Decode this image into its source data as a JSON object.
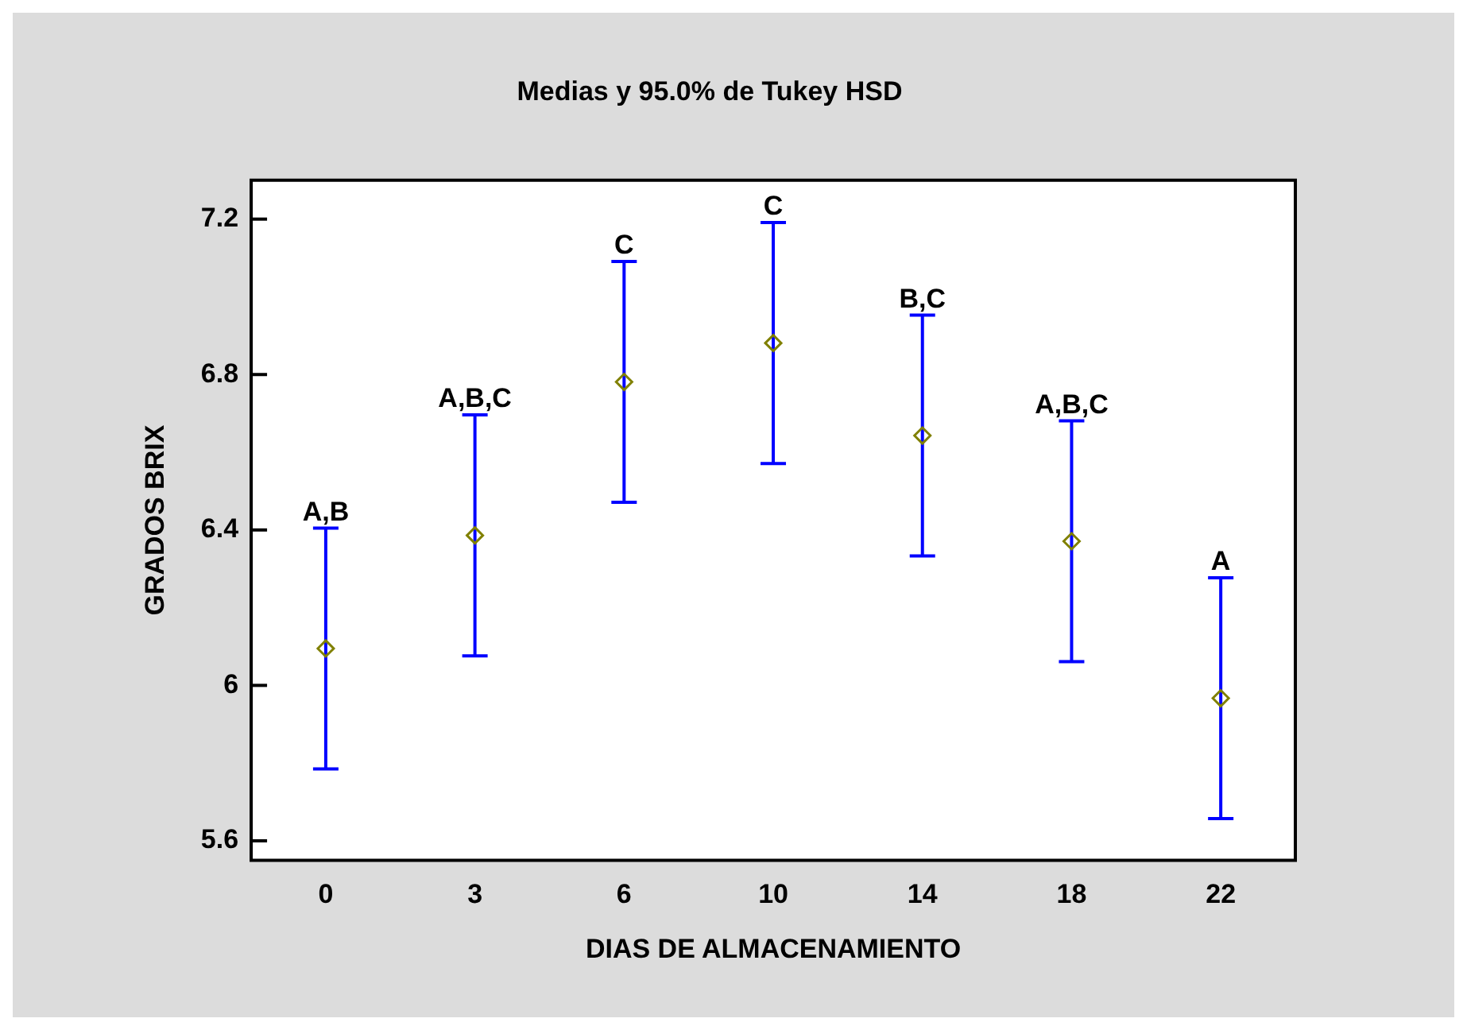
{
  "chart_data": {
    "type": "scatter",
    "title": "Medias y 95.0% de Tukey HSD",
    "xlabel": "DIAS DE ALMACENAMIENTO",
    "ylabel": "GRADOS BRIX",
    "categories": [
      "0",
      "3",
      "6",
      "10",
      "14",
      "18",
      "22"
    ],
    "series": [
      {
        "color": "#808000",
        "values": [
          6.095,
          6.386,
          6.781,
          6.881,
          6.643,
          6.371,
          5.967
        ],
        "errors": [
          0.31,
          0.31,
          0.31,
          0.31,
          0.31,
          0.31,
          0.31
        ]
      }
    ],
    "marker": "diamond",
    "grid": false,
    "legend": false,
    "ylim": [
      5.55,
      7.3
    ],
    "yticks": [
      {
        "value": 5.6,
        "label": "5.6"
      },
      {
        "value": 6,
        "label": "6"
      },
      {
        "value": 6.4,
        "label": "6.4"
      },
      {
        "value": 6.8,
        "label": "6.8"
      },
      {
        "value": 7.2,
        "label": "7.2"
      }
    ],
    "annotations": [
      {
        "text": "A,B",
        "x": "0",
        "y": 6.405
      },
      {
        "text": "A,B,C",
        "x": "3",
        "y": 6.696
      },
      {
        "text": "C",
        "x": "6",
        "y": 7.091
      },
      {
        "text": "C",
        "x": "10",
        "y": 7.191
      },
      {
        "text": "B,C",
        "x": "14",
        "y": 6.953
      },
      {
        "text": "A,B,C",
        "x": "18",
        "y": 6.681
      },
      {
        "text": "A",
        "x": "22",
        "y": 6.277
      }
    ]
  }
}
